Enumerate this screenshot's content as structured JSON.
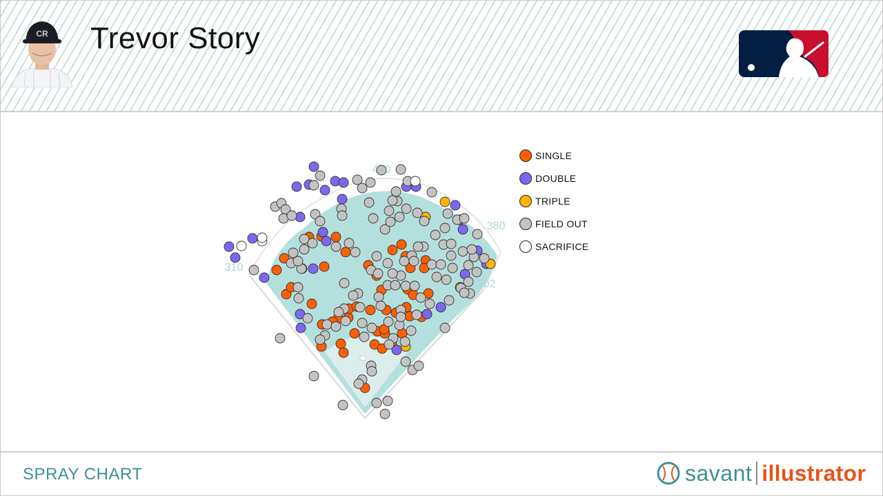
{
  "header": {
    "player_name": "Trevor Story"
  },
  "footer": {
    "chart_label": "SPRAY CHART",
    "brand_savant": "savant",
    "brand_illustrator": "illustrator"
  },
  "colors": {
    "single": "#ff5f00",
    "double": "#7b68ee",
    "triple": "#ffb400",
    "field_out": "#c3c3c3",
    "sacrifice": "#ffffff",
    "field": "#b3e0dd",
    "stripe": "#b9d6d6",
    "accent": "#3f8f97",
    "brand_orange": "#e8551c",
    "mlb_navy": "#041e42",
    "mlb_red": "#c8102e"
  },
  "chart_data": {
    "type": "scatter",
    "x_axis": "horizontal position on field",
    "y_axis": "vertical position on field",
    "fence_distances": [
      "310",
      "400",
      "380",
      "302"
    ],
    "legend_placement": "right",
    "series": [
      {
        "name": "SINGLE",
        "color": "#ff5f00",
        "points": [
          [
            465,
            342
          ],
          [
            447,
            343
          ],
          [
            486,
            343
          ],
          [
            500,
            365
          ],
          [
            411,
            374
          ],
          [
            469,
            386
          ],
          [
            400,
            391
          ],
          [
            437,
            389
          ],
          [
            414,
            426
          ],
          [
            421,
            416
          ],
          [
            451,
            440
          ],
          [
            466,
            470
          ],
          [
            489,
            461
          ],
          [
            481,
            466
          ],
          [
            504,
            460
          ],
          [
            513,
            483
          ],
          [
            493,
            498
          ],
          [
            465,
            502
          ],
          [
            497,
            511
          ],
          [
            542,
            499
          ],
          [
            553,
            505
          ],
          [
            546,
            480
          ],
          [
            557,
            483
          ],
          [
            582,
            483
          ],
          [
            567,
            498
          ],
          [
            528,
            562
          ],
          [
            533,
            384
          ],
          [
            545,
            399
          ],
          [
            552,
            420
          ],
          [
            536,
            449
          ],
          [
            559,
            449
          ],
          [
            573,
            453
          ],
          [
            588,
            445
          ],
          [
            593,
            458
          ],
          [
            590,
            419
          ],
          [
            598,
            427
          ],
          [
            620,
            425
          ],
          [
            587,
            371
          ],
          [
            568,
            362
          ],
          [
            581,
            354
          ],
          [
            594,
            388
          ],
          [
            616,
            377
          ],
          [
            614,
            388
          ],
          [
            610,
            459
          ],
          [
            505,
            447
          ],
          [
            516,
            444
          ],
          [
            556,
            477
          ]
        ]
      },
      {
        "name": "DOUBLE",
        "color": "#7b68ee",
        "points": [
          [
            454,
            241
          ],
          [
            429,
            270
          ],
          [
            447,
            267
          ],
          [
            470,
            275
          ],
          [
            485,
            262
          ],
          [
            497,
            264
          ],
          [
            495,
            288
          ],
          [
            434,
            314
          ],
          [
            467,
            336
          ],
          [
            472,
            349
          ],
          [
            453,
            389
          ],
          [
            382,
            402
          ],
          [
            331,
            357
          ],
          [
            340,
            373
          ],
          [
            365,
            345
          ],
          [
            588,
            270
          ],
          [
            602,
            270
          ],
          [
            659,
            297
          ],
          [
            665,
            318
          ],
          [
            670,
            332
          ],
          [
            691,
            363
          ],
          [
            704,
            382
          ],
          [
            673,
            397
          ],
          [
            638,
            445
          ],
          [
            618,
            455
          ],
          [
            435,
            475
          ],
          [
            434,
            455
          ],
          [
            574,
            507
          ]
        ]
      },
      {
        "name": "TRIPLE",
        "color": "#ffb400",
        "points": [
          [
            644,
            292
          ],
          [
            616,
            314
          ],
          [
            666,
            416
          ],
          [
            710,
            382
          ],
          [
            587,
            502
          ]
        ]
      },
      {
        "name": "FIELD OUT",
        "color": "#c3c3c3",
        "points": [
          [
            463,
            254
          ],
          [
            454,
            268
          ],
          [
            517,
            260
          ],
          [
            524,
            272
          ],
          [
            536,
            264
          ],
          [
            552,
            246
          ],
          [
            580,
            245
          ],
          [
            590,
            262
          ],
          [
            573,
            277
          ],
          [
            575,
            291
          ],
          [
            588,
            302
          ],
          [
            604,
            308
          ],
          [
            625,
            278
          ],
          [
            648,
            309
          ],
          [
            662,
            318
          ],
          [
            672,
            316
          ],
          [
            691,
            339
          ],
          [
            398,
            299
          ],
          [
            407,
            294
          ],
          [
            413,
            303
          ],
          [
            410,
            316
          ],
          [
            422,
            312
          ],
          [
            456,
            310
          ],
          [
            463,
            320
          ],
          [
            494,
            302
          ],
          [
            495,
            312
          ],
          [
            534,
            293
          ],
          [
            540,
            316
          ],
          [
            557,
            332
          ],
          [
            565,
            321
          ],
          [
            578,
            314
          ],
          [
            563,
            305
          ],
          [
            568,
            290
          ],
          [
            440,
            346
          ],
          [
            452,
            352
          ],
          [
            486,
            357
          ],
          [
            505,
            352
          ],
          [
            514,
            365
          ],
          [
            424,
            366
          ],
          [
            421,
            381
          ],
          [
            436,
            389
          ],
          [
            431,
            378
          ],
          [
            440,
            361
          ],
          [
            367,
            391
          ],
          [
            545,
            371
          ],
          [
            561,
            381
          ],
          [
            537,
            391
          ],
          [
            547,
            396
          ],
          [
            580,
            399
          ],
          [
            568,
            396
          ],
          [
            561,
            413
          ],
          [
            572,
            413
          ],
          [
            587,
            414
          ],
          [
            600,
            414
          ],
          [
            613,
            357
          ],
          [
            596,
            370
          ],
          [
            585,
            378
          ],
          [
            599,
            378
          ],
          [
            625,
            383
          ],
          [
            638,
            383
          ],
          [
            653,
            370
          ],
          [
            655,
            388
          ],
          [
            642,
            354
          ],
          [
            653,
            353
          ],
          [
            670,
            364
          ],
          [
            686,
            372
          ],
          [
            678,
            384
          ],
          [
            690,
            394
          ],
          [
            701,
            374
          ],
          [
            683,
            361
          ],
          [
            646,
            405
          ],
          [
            632,
            401
          ],
          [
            667,
            417
          ],
          [
            680,
            425
          ],
          [
            672,
            424
          ],
          [
            678,
            408
          ],
          [
            650,
            435
          ],
          [
            622,
            440
          ],
          [
            609,
            431
          ],
          [
            580,
            449
          ],
          [
            498,
            410
          ],
          [
            518,
            425
          ],
          [
            511,
            428
          ],
          [
            548,
            430
          ],
          [
            551,
            443
          ],
          [
            521,
            445
          ],
          [
            498,
            447
          ],
          [
            473,
            470
          ],
          [
            470,
            486
          ],
          [
            463,
            492
          ],
          [
            486,
            473
          ],
          [
            490,
            452
          ],
          [
            500,
            465
          ],
          [
            524,
            468
          ],
          [
            527,
            488
          ],
          [
            538,
            475
          ],
          [
            562,
            466
          ],
          [
            578,
            471
          ],
          [
            569,
            490
          ],
          [
            563,
            499
          ],
          [
            586,
            495
          ],
          [
            595,
            479
          ],
          [
            580,
            459
          ],
          [
            603,
            456
          ],
          [
            587,
            524
          ],
          [
            597,
            536
          ],
          [
            606,
            530
          ],
          [
            537,
            530
          ],
          [
            538,
            538
          ],
          [
            524,
            550
          ],
          [
            519,
            556
          ],
          [
            545,
            584
          ],
          [
            561,
            581
          ],
          [
            557,
            600
          ],
          [
            496,
            587
          ],
          [
            454,
            545
          ],
          [
            405,
            490
          ],
          [
            431,
            416
          ],
          [
            432,
            432
          ],
          [
            445,
            461
          ],
          [
            644,
            475
          ],
          [
            605,
            357
          ],
          [
            614,
            320
          ],
          [
            630,
            340
          ],
          [
            644,
            330
          ]
        ]
      },
      {
        "name": "SACRIFICE",
        "color": "#ffffff",
        "points": [
          [
            349,
            356
          ],
          [
            379,
            349
          ],
          [
            379,
            344
          ],
          [
            601,
            262
          ]
        ]
      }
    ]
  }
}
